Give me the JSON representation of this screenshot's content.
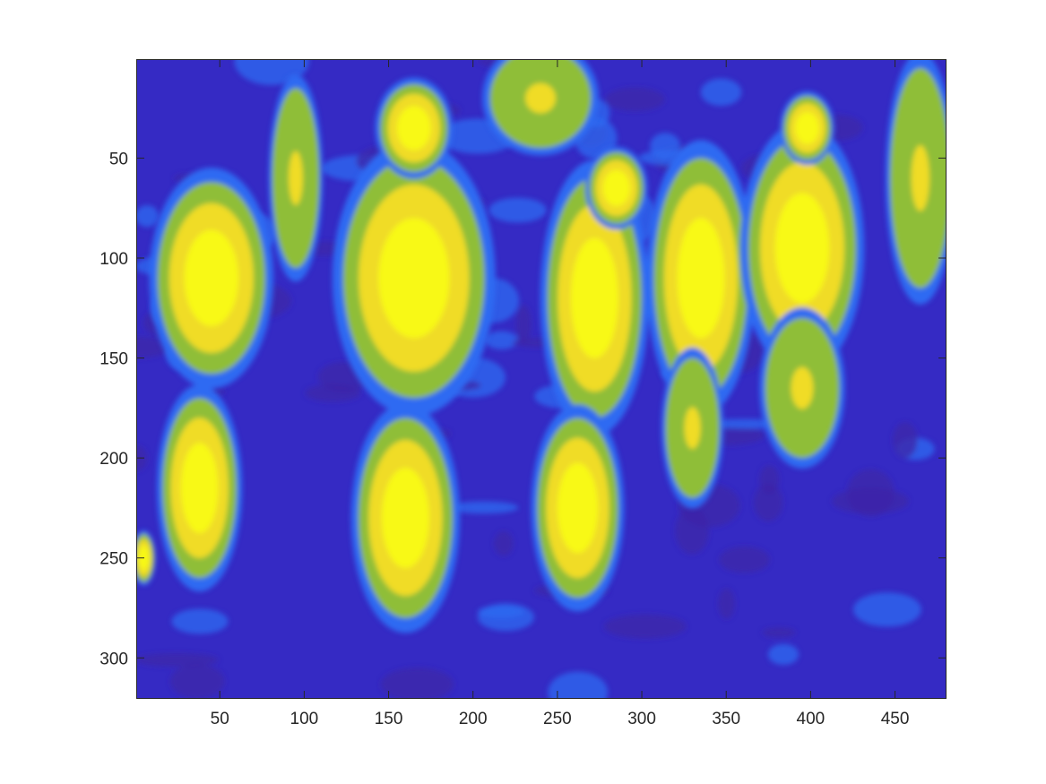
{
  "chart_data": {
    "type": "heatmap",
    "title": "",
    "xlabel": "",
    "ylabel": "",
    "image_width": 480,
    "image_height": 320,
    "xlim": [
      0.5,
      480.5
    ],
    "ylim": [
      0.5,
      320.5
    ],
    "y_reversed": true,
    "colormap": "parula (quantized)",
    "levels": [
      "#3e26a8",
      "#352ac4",
      "#2f6bf2",
      "#8fbe38",
      "#f0dc28",
      "#f8f918"
    ],
    "x_ticks": [
      {
        "value": 50,
        "label": "50"
      },
      {
        "value": 100,
        "label": "100"
      },
      {
        "value": 150,
        "label": "150"
      },
      {
        "value": 200,
        "label": "200"
      },
      {
        "value": 250,
        "label": "250"
      },
      {
        "value": 300,
        "label": "300"
      },
      {
        "value": 350,
        "label": "350"
      },
      {
        "value": 400,
        "label": "400"
      },
      {
        "value": 450,
        "label": "450"
      }
    ],
    "y_ticks": [
      {
        "value": 50,
        "label": "50"
      },
      {
        "value": 100,
        "label": "100"
      },
      {
        "value": 150,
        "label": "150"
      },
      {
        "value": 200,
        "label": "200"
      },
      {
        "value": 250,
        "label": "250"
      },
      {
        "value": 300,
        "label": "300"
      }
    ],
    "regions": [
      {
        "name": "person-far-left-torso",
        "level": 4,
        "cx": 45,
        "cy": 110,
        "rx": 32,
        "ry": 48
      },
      {
        "name": "person-far-left-legs",
        "level": 4,
        "cx": 38,
        "cy": 215,
        "rx": 22,
        "ry": 45
      },
      {
        "name": "person-center-left-torso",
        "level": 4,
        "cx": 165,
        "cy": 110,
        "rx": 42,
        "ry": 60
      },
      {
        "name": "person-center-left-head",
        "level": 5,
        "cx": 165,
        "cy": 35,
        "rx": 20,
        "ry": 22
      },
      {
        "name": "person-center-left-legs",
        "level": 4,
        "cx": 160,
        "cy": 230,
        "rx": 28,
        "ry": 50
      },
      {
        "name": "person-center-torso",
        "level": 4,
        "cx": 272,
        "cy": 120,
        "rx": 28,
        "ry": 60
      },
      {
        "name": "person-center-head",
        "level": 5,
        "cx": 285,
        "cy": 65,
        "rx": 16,
        "ry": 18
      },
      {
        "name": "person-center-legs",
        "level": 4,
        "cx": 262,
        "cy": 225,
        "rx": 24,
        "ry": 45
      },
      {
        "name": "person-right-torso",
        "level": 4,
        "cx": 335,
        "cy": 110,
        "rx": 28,
        "ry": 60
      },
      {
        "name": "person-right-legs",
        "level": 3,
        "cx": 330,
        "cy": 185,
        "rx": 16,
        "ry": 35
      },
      {
        "name": "person-far-right-torso",
        "level": 4,
        "cx": 395,
        "cy": 95,
        "rx": 32,
        "ry": 55
      },
      {
        "name": "person-far-right-head",
        "level": 5,
        "cx": 398,
        "cy": 35,
        "rx": 14,
        "ry": 16
      },
      {
        "name": "person-far-right-legs",
        "level": 3,
        "cx": 395,
        "cy": 165,
        "rx": 22,
        "ry": 35
      },
      {
        "name": "person-edge-right",
        "level": 3,
        "cx": 465,
        "cy": 60,
        "rx": 18,
        "ry": 55
      },
      {
        "name": "person-back-top",
        "level": 3,
        "cx": 240,
        "cy": 20,
        "rx": 30,
        "ry": 25
      },
      {
        "name": "person-back-left",
        "level": 3,
        "cx": 95,
        "cy": 60,
        "rx": 14,
        "ry": 45
      },
      {
        "name": "person-edge-left-bottom",
        "level": 4,
        "cx": 5,
        "cy": 250,
        "rx": 6,
        "ry": 12
      }
    ]
  }
}
